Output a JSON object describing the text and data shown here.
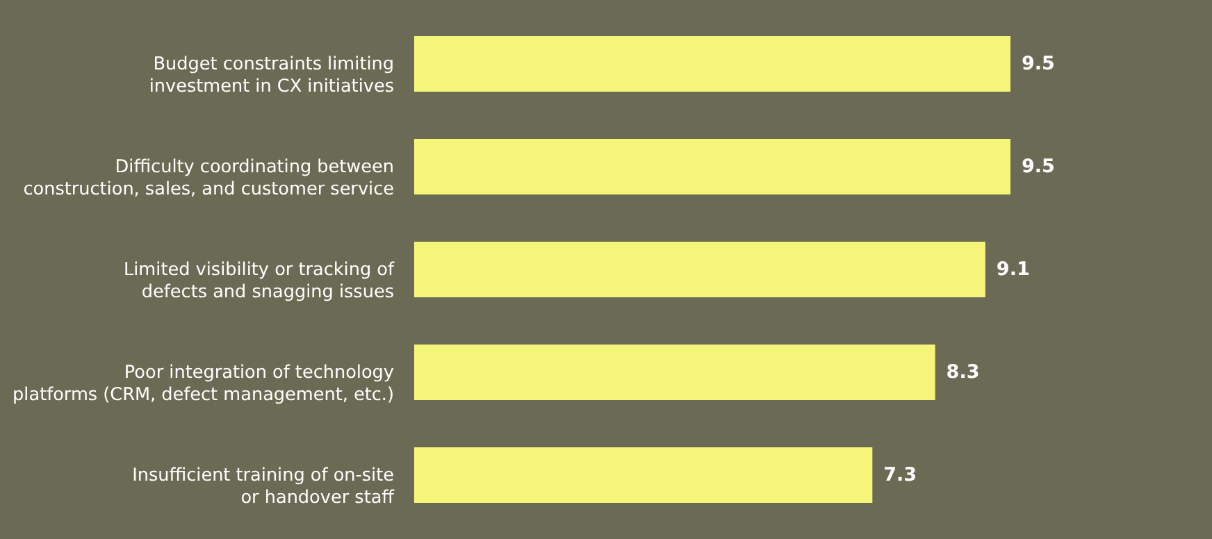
{
  "chart_data": {
    "type": "bar",
    "orientation": "horizontal",
    "data_labels": true,
    "categories": [
      "Budget constraints limiting\ninvestment in CX initiatives",
      "Difficulty coordinating between\nconstruction, sales, and customer service",
      "Limited visibility or tracking of\ndefects and snagging issues",
      "Poor integration of technology\nplatforms (CRM, defect management, etc.)",
      "Insufficient training of on-site\nor handover staff"
    ],
    "values": [
      9.5,
      9.5,
      9.1,
      8.3,
      7.3
    ],
    "color": "#f5f57a"
  }
}
